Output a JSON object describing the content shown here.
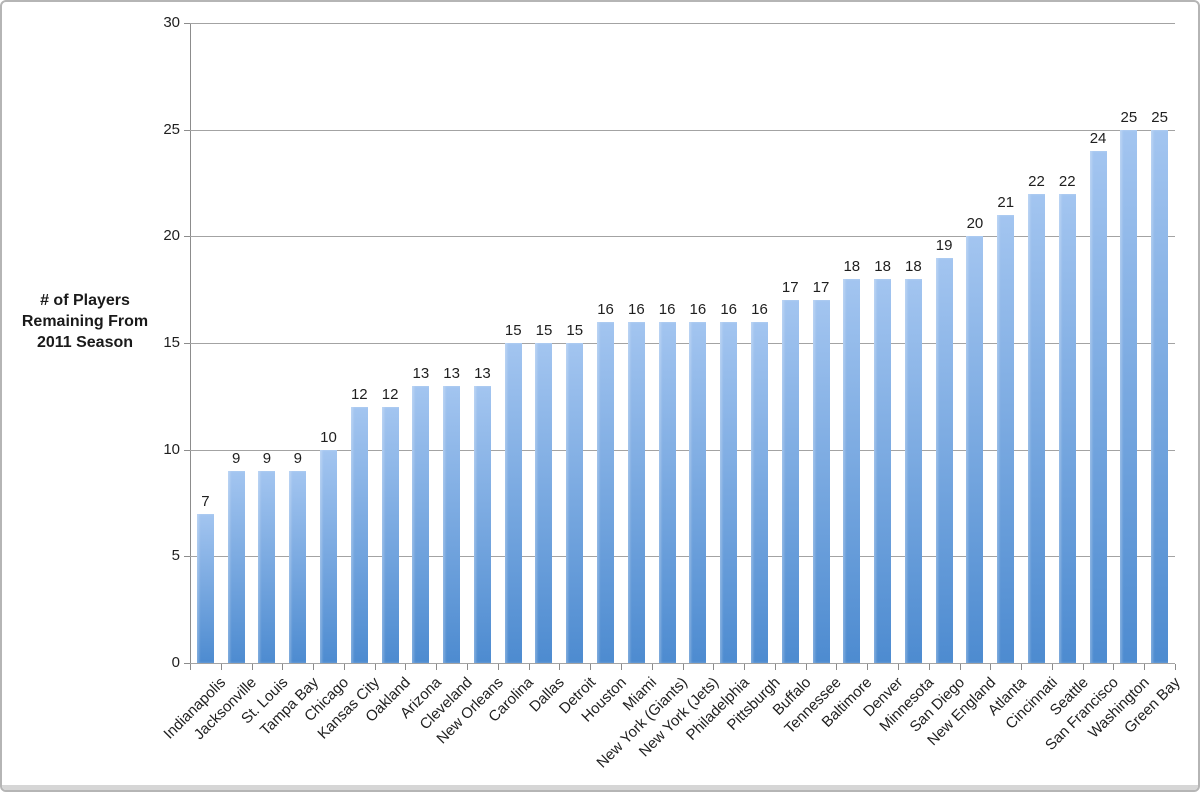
{
  "chart_data": {
    "type": "bar",
    "title": "",
    "ylabel": "# of Players Remaining From 2011 Season",
    "ylabel_lines": [
      "# of Players",
      "Remaining From",
      "2011 Season"
    ],
    "xlabel": "",
    "categories": [
      "Indianapolis",
      "Jacksonville",
      "St. Louis",
      "Tampa Bay",
      "Chicago",
      "Kansas City",
      "Oakland",
      "Arizona",
      "Cleveland",
      "New Orleans",
      "Carolina",
      "Dallas",
      "Detroit",
      "Houston",
      "Miami",
      "New York (Giants)",
      "New York (Jets)",
      "Philadelphia",
      "Pittsburgh",
      "Buffalo",
      "Tennessee",
      "Baltimore",
      "Denver",
      "Minnesota",
      "San Diego",
      "New England",
      "Atlanta",
      "Cincinnati",
      "Seattle",
      "San Francisco",
      "Washington",
      "Green Bay"
    ],
    "values": [
      7,
      9,
      9,
      9,
      10,
      12,
      12,
      13,
      13,
      13,
      15,
      15,
      15,
      16,
      16,
      16,
      16,
      16,
      16,
      17,
      17,
      18,
      18,
      18,
      19,
      20,
      21,
      22,
      22,
      24,
      25,
      25
    ],
    "ylim": [
      0,
      30
    ],
    "yticks": [
      0,
      5,
      10,
      15,
      20,
      25,
      30
    ],
    "grid": true,
    "legend": null,
    "data_labels_shown": true,
    "colors": {
      "bar_gradient_top": "#a3c5f0",
      "bar_gradient_bottom": "#4d8bd0",
      "gridline": "#a3a3a3",
      "axis_line": "#8c8c8c",
      "text": "#1f1f1f",
      "window_border": "#b5b5b5",
      "bottom_strip": "#d6d6d6",
      "background": "#ffffff"
    }
  }
}
